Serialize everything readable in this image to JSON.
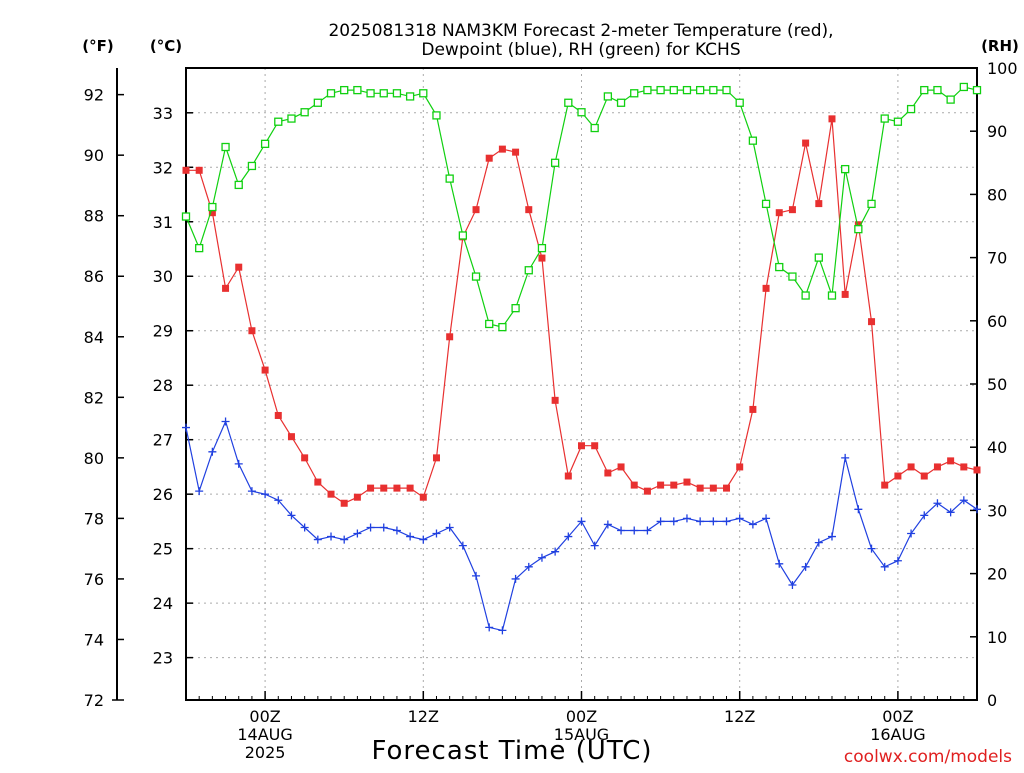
{
  "title": {
    "line1": "2025081318 NAM3KM Forecast 2-meter Temperature (red),",
    "line2": "Dewpoint (blue), RH (green) for KCHS"
  },
  "units": {
    "fahrenheit": "(°F)",
    "celsius": "(°C)",
    "rh": "(RH)"
  },
  "xlabel": "Forecast Time (UTC)",
  "credit": "coolwx.com/models",
  "colors": {
    "temperature": "#e83030",
    "dewpoint": "#2040e0",
    "rh": "#10d010",
    "grid": "#aaaaaa"
  },
  "chart_data": {
    "type": "line",
    "x_unit": "forecast hour from 2025-08-13 18Z",
    "x_range": [
      0,
      60
    ],
    "x_ticks": [
      {
        "hour": 6,
        "labels": [
          "00Z",
          "14AUG",
          "2025"
        ]
      },
      {
        "hour": 18,
        "labels": [
          "12Z"
        ]
      },
      {
        "hour": 30,
        "labels": [
          "00Z",
          "15AUG"
        ]
      },
      {
        "hour": 42,
        "labels": [
          "12Z"
        ]
      },
      {
        "hour": 54,
        "labels": [
          "00Z",
          "16AUG"
        ]
      }
    ],
    "y_left_f": {
      "ticks": [
        72,
        74,
        76,
        78,
        80,
        82,
        84,
        86,
        88,
        90,
        92
      ],
      "range": [
        72,
        92.88
      ]
    },
    "y_left_c": {
      "ticks": [
        23,
        24,
        25,
        26,
        27,
        28,
        29,
        30,
        31,
        32,
        33
      ]
    },
    "y_right_rh": {
      "ticks": [
        0,
        10,
        20,
        30,
        40,
        50,
        60,
        70,
        80,
        90,
        100
      ],
      "range": [
        0,
        100
      ]
    },
    "grid": true,
    "series": [
      {
        "name": "Temperature",
        "unit": "F",
        "values": [
          89.5,
          89.5,
          88.1,
          85.6,
          86.3,
          84.2,
          82.9,
          81.4,
          80.7,
          80.0,
          79.2,
          78.8,
          78.5,
          78.7,
          79.0,
          79.0,
          79.0,
          79.0,
          78.7,
          80.0,
          84.0,
          87.3,
          88.2,
          89.9,
          90.2,
          90.1,
          88.2,
          86.6,
          81.9,
          79.4,
          80.4,
          80.4,
          79.5,
          79.7,
          79.1,
          78.9,
          79.1,
          79.1,
          79.2,
          79.0,
          79.0,
          79.0,
          79.7,
          81.6,
          85.6,
          88.1,
          88.2,
          90.4,
          88.4,
          91.2,
          85.4,
          87.7,
          84.5,
          79.1,
          79.4,
          79.7,
          79.4,
          79.7,
          79.9,
          79.7,
          79.6
        ]
      },
      {
        "name": "Dewpoint",
        "unit": "F",
        "values": [
          81.0,
          78.9,
          80.2,
          81.2,
          79.8,
          78.9,
          78.8,
          78.6,
          78.1,
          77.7,
          77.3,
          77.4,
          77.3,
          77.5,
          77.7,
          77.7,
          77.6,
          77.4,
          77.3,
          77.5,
          77.7,
          77.1,
          76.1,
          74.4,
          74.3,
          76.0,
          76.4,
          76.7,
          76.9,
          77.4,
          77.9,
          77.1,
          77.8,
          77.6,
          77.6,
          77.6,
          77.9,
          77.9,
          78.0,
          77.9,
          77.9,
          77.9,
          78.0,
          77.8,
          78.0,
          76.5,
          75.8,
          76.4,
          77.2,
          77.4,
          80.0,
          78.3,
          77.0,
          76.4,
          76.6,
          77.5,
          78.1,
          78.5,
          78.2,
          78.6,
          78.3
        ]
      },
      {
        "name": "RH",
        "unit": "%",
        "values": [
          76.5,
          71.5,
          78.0,
          87.5,
          81.5,
          84.5,
          88.0,
          91.5,
          92.0,
          93.0,
          94.5,
          96.0,
          96.5,
          96.5,
          96.0,
          96.0,
          96.0,
          95.5,
          96.0,
          92.5,
          82.5,
          73.5,
          67.0,
          59.5,
          59.0,
          62.0,
          68.0,
          71.5,
          85.0,
          94.5,
          93.0,
          90.5,
          95.5,
          94.5,
          96.0,
          96.5,
          96.5,
          96.5,
          96.5,
          96.5,
          96.5,
          96.5,
          94.5,
          88.5,
          78.5,
          68.5,
          67.0,
          64.0,
          70.0,
          64.0,
          84.0,
          74.5,
          78.5,
          92.0,
          91.5,
          93.5,
          96.5,
          96.5,
          95.0,
          97.0,
          96.5
        ]
      }
    ]
  }
}
